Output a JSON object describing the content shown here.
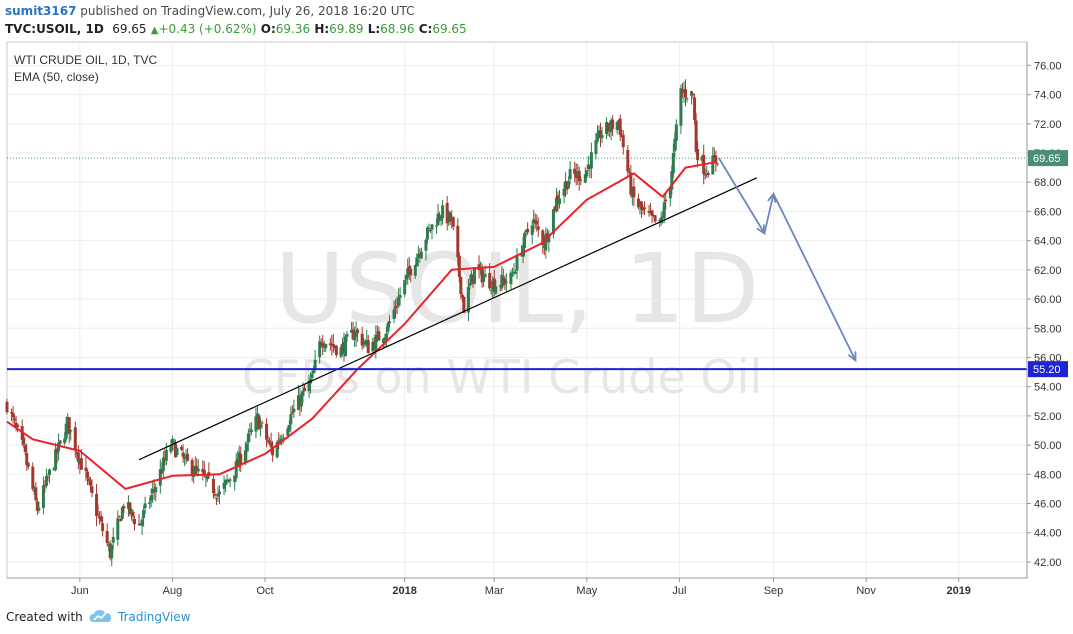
{
  "header": {
    "user": "sumit3167",
    "published": "published on TradingView.com, July 26, 2018 16:20 UTC",
    "symbol_label": "TVC:USOIL, 1D",
    "last": "69.65",
    "up_icon": "triangle-up-icon",
    "change": "+0.43 (+0.62%)",
    "o_label": "O:",
    "o_value": "69.36",
    "h_label": "H:",
    "h_value": "69.89",
    "l_label": "L:",
    "l_value": "68.96",
    "c_label": "C:",
    "c_value": "69.65"
  },
  "footer": {
    "created_with": "Created with",
    "brand": "TradingView",
    "logo_icon": "tradingview-cloud-icon"
  },
  "colors": {
    "up": "#2e7d4f",
    "down": "#a03a2e",
    "ema": "#e8232a",
    "support_line": "#1f23d6",
    "trendline": "#000000",
    "projection": "#6b86c0",
    "last_price": "#4a8e74"
  },
  "chart_data": {
    "type": "candlestick",
    "title": "WTI CRUDE OIL, 1D, TVC",
    "indicator": "EMA (50, close)",
    "watermark_1": "USOIL, 1D",
    "watermark_2": "CFDs on WTI Crude Oil",
    "y_ticks": [
      "42.00",
      "44.00",
      "46.00",
      "48.00",
      "50.00",
      "52.00",
      "54.00",
      "56.00",
      "58.00",
      "60.00",
      "62.00",
      "64.00",
      "66.00",
      "68.00",
      "70.00",
      "72.00",
      "74.00",
      "76.00"
    ],
    "ylim": [
      40.9,
      77.6
    ],
    "x_ticks": [
      {
        "label": "Jun",
        "date": "2017-06-01",
        "bold": false
      },
      {
        "label": "Aug",
        "date": "2017-08-01",
        "bold": false
      },
      {
        "label": "Oct",
        "date": "2017-10-01",
        "bold": false
      },
      {
        "label": "2018",
        "date": "2018-01-01",
        "bold": true
      },
      {
        "label": "Mar",
        "date": "2018-03-01",
        "bold": false
      },
      {
        "label": "May",
        "date": "2018-05-01",
        "bold": false
      },
      {
        "label": "Jul",
        "date": "2018-07-01",
        "bold": false
      },
      {
        "label": "Sep",
        "date": "2018-09-01",
        "bold": false
      },
      {
        "label": "Nov",
        "date": "2018-11-01",
        "bold": false
      },
      {
        "label": "2019",
        "date": "2019-01-01",
        "bold": true
      }
    ],
    "xlim": [
      "2017-04-14",
      "2019-02-15"
    ],
    "last_price": "69.65",
    "support_level": "55.20",
    "price_path": [
      [
        "2017-04-14",
        52.8
      ],
      [
        "2017-04-25",
        49.6
      ],
      [
        "2017-05-04",
        45.6
      ],
      [
        "2017-05-12",
        48.0
      ],
      [
        "2017-05-24",
        51.5
      ],
      [
        "2017-06-05",
        47.8
      ],
      [
        "2017-06-14",
        44.8
      ],
      [
        "2017-06-21",
        42.6
      ],
      [
        "2017-06-30",
        46.0
      ],
      [
        "2017-07-10",
        44.5
      ],
      [
        "2017-07-20",
        47.0
      ],
      [
        "2017-07-31",
        50.1
      ],
      [
        "2017-08-10",
        48.8
      ],
      [
        "2017-08-24",
        47.5
      ],
      [
        "2017-09-01",
        46.6
      ],
      [
        "2017-09-12",
        48.5
      ],
      [
        "2017-09-26",
        51.8
      ],
      [
        "2017-10-06",
        49.5
      ],
      [
        "2017-10-18",
        52.0
      ],
      [
        "2017-11-01",
        54.5
      ],
      [
        "2017-11-07",
        57.3
      ],
      [
        "2017-11-20",
        56.5
      ],
      [
        "2017-11-29",
        57.8
      ],
      [
        "2017-12-08",
        56.7
      ],
      [
        "2017-12-20",
        57.9
      ],
      [
        "2018-01-04",
        61.9
      ],
      [
        "2018-01-15",
        64.3
      ],
      [
        "2018-01-25",
        66.0
      ],
      [
        "2018-02-01",
        65.3
      ],
      [
        "2018-02-09",
        59.4
      ],
      [
        "2018-02-16",
        62.0
      ],
      [
        "2018-03-01",
        61.0
      ],
      [
        "2018-03-12",
        61.4
      ],
      [
        "2018-03-26",
        65.5
      ],
      [
        "2018-04-03",
        63.8
      ],
      [
        "2018-04-11",
        66.8
      ],
      [
        "2018-04-20",
        68.4
      ],
      [
        "2018-04-30",
        68.6
      ],
      [
        "2018-05-10",
        71.3
      ],
      [
        "2018-05-22",
        72.2
      ],
      [
        "2018-05-31",
        67.0
      ],
      [
        "2018-06-07",
        65.9
      ],
      [
        "2018-06-18",
        65.0
      ],
      [
        "2018-06-25",
        68.0
      ],
      [
        "2018-07-02",
        74.2
      ],
      [
        "2018-07-10",
        74.0
      ],
      [
        "2018-07-12",
        70.3
      ],
      [
        "2018-07-18",
        68.8
      ],
      [
        "2018-07-26",
        69.65
      ]
    ],
    "ema_path": [
      [
        "2017-04-14",
        51.6
      ],
      [
        "2017-05-01",
        50.4
      ],
      [
        "2017-06-01",
        49.6
      ],
      [
        "2017-07-01",
        47.0
      ],
      [
        "2017-08-01",
        47.9
      ],
      [
        "2017-09-01",
        48.0
      ],
      [
        "2017-10-01",
        49.4
      ],
      [
        "2017-11-01",
        51.8
      ],
      [
        "2017-12-01",
        55.2
      ],
      [
        "2018-01-01",
        58.3
      ],
      [
        "2018-02-01",
        62.0
      ],
      [
        "2018-03-01",
        62.2
      ],
      [
        "2018-04-01",
        63.8
      ],
      [
        "2018-05-01",
        66.8
      ],
      [
        "2018-06-01",
        68.6
      ],
      [
        "2018-06-20",
        67.0
      ],
      [
        "2018-07-05",
        69.0
      ],
      [
        "2018-07-26",
        69.4
      ]
    ],
    "trendline": [
      [
        "2017-07-10",
        49.0
      ],
      [
        "2018-08-21",
        68.3
      ]
    ],
    "projection": [
      [
        "2018-07-27",
        69.65
      ],
      [
        "2018-08-26",
        64.5
      ],
      [
        "2018-09-01",
        67.2
      ],
      [
        "2018-10-25",
        55.8
      ]
    ]
  }
}
